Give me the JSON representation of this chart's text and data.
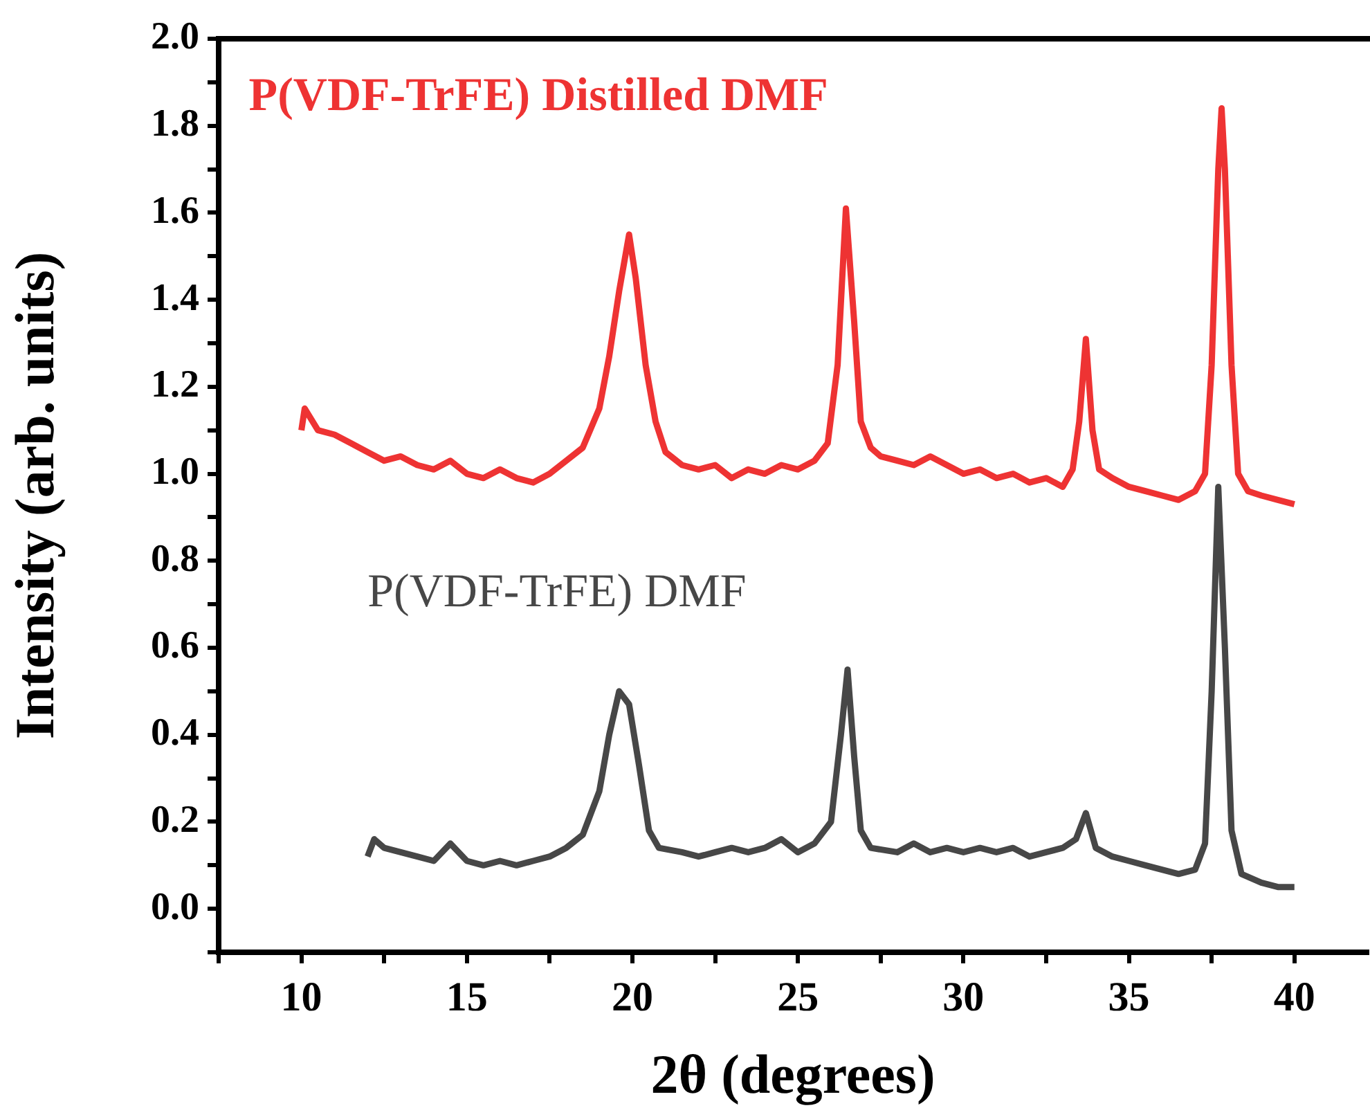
{
  "chart_data": {
    "type": "line",
    "xlabel": "2θ (degrees)",
    "ylabel": "Intensity (arb. units)",
    "xlim": [
      7.5,
      42.2
    ],
    "ylim": [
      -0.1,
      2.0
    ],
    "xticks": [
      {
        "value": 7.5,
        "label": null
      },
      10,
      {
        "value": 12.5,
        "label": null
      },
      15,
      {
        "value": 17.5,
        "label": null
      },
      20,
      {
        "value": 22.5,
        "label": null
      },
      25,
      {
        "value": 27.5,
        "label": null
      },
      30,
      {
        "value": 32.5,
        "label": null
      },
      35,
      {
        "value": 37.5,
        "label": null
      },
      40
    ],
    "yticks": [
      {
        "value": -0.1,
        "label": null
      },
      {
        "value": 0,
        "label": "0.0"
      },
      {
        "value": 0.1,
        "label": null
      },
      0.2,
      {
        "value": 0.3,
        "label": null
      },
      0.4,
      {
        "value": 0.5,
        "label": null
      },
      0.6,
      {
        "value": 0.7,
        "label": null
      },
      0.8,
      {
        "value": 0.9,
        "label": null
      },
      {
        "value": 1,
        "label": "1.0"
      },
      {
        "value": 1.1,
        "label": null
      },
      1.2,
      {
        "value": 1.3,
        "label": null
      },
      1.4,
      {
        "value": 1.5,
        "label": null
      },
      1.6,
      {
        "value": 1.7,
        "label": null
      },
      1.8,
      {
        "value": 1.9,
        "label": null
      },
      {
        "value": 2,
        "label": "2.0"
      }
    ],
    "grid": false,
    "marker": "none",
    "line_style": "solid",
    "series": [
      {
        "name": "P(VDF-TrFE) Distilled DMF",
        "color": "#ee3333",
        "x": [
          10,
          10.1,
          10.5,
          11,
          11.5,
          12,
          12.5,
          13,
          13.5,
          14,
          14.5,
          15,
          15.5,
          16,
          16.5,
          17,
          17.5,
          18,
          18.5,
          19,
          19.3,
          19.6,
          19.9,
          20.1,
          20.4,
          20.7,
          21,
          21.5,
          22,
          22.5,
          23,
          23.5,
          24,
          24.5,
          25,
          25.5,
          25.9,
          26.2,
          26.45,
          26.7,
          26.9,
          27.2,
          27.5,
          28,
          28.5,
          29,
          29.5,
          30,
          30.5,
          31,
          31.5,
          32,
          32.5,
          33,
          33.3,
          33.5,
          33.7,
          33.9,
          34.1,
          34.5,
          35,
          35.5,
          36,
          36.5,
          37,
          37.3,
          37.5,
          37.7,
          37.8,
          37.9,
          38.1,
          38.3,
          38.6,
          39,
          39.5,
          40
        ],
        "values": [
          1.1,
          1.15,
          1.1,
          1.09,
          1.07,
          1.05,
          1.03,
          1.04,
          1.02,
          1.01,
          1.03,
          1.0,
          0.99,
          1.01,
          0.99,
          0.98,
          1.0,
          1.03,
          1.06,
          1.15,
          1.27,
          1.42,
          1.55,
          1.45,
          1.25,
          1.12,
          1.05,
          1.02,
          1.01,
          1.02,
          0.99,
          1.01,
          1.0,
          1.02,
          1.01,
          1.03,
          1.07,
          1.25,
          1.61,
          1.35,
          1.12,
          1.06,
          1.04,
          1.03,
          1.02,
          1.04,
          1.02,
          1.0,
          1.01,
          0.99,
          1.0,
          0.98,
          0.99,
          0.97,
          1.01,
          1.12,
          1.31,
          1.1,
          1.01,
          0.99,
          0.97,
          0.96,
          0.95,
          0.94,
          0.96,
          1.0,
          1.25,
          1.7,
          1.84,
          1.7,
          1.25,
          1.0,
          0.96,
          0.95,
          0.94,
          0.93
        ]
      },
      {
        "name": "P(VDF-TrFE) DMF",
        "color": "#474747",
        "x": [
          12,
          12.2,
          12.5,
          13,
          13.5,
          14,
          14.5,
          15,
          15.5,
          16,
          16.5,
          17,
          17.5,
          18,
          18.5,
          19,
          19.3,
          19.6,
          19.9,
          20.2,
          20.5,
          20.8,
          21.5,
          22,
          22.5,
          23,
          23.5,
          24,
          24.5,
          25,
          25.5,
          26,
          26.3,
          26.5,
          26.7,
          26.9,
          27.2,
          28,
          28.5,
          29,
          29.5,
          30,
          30.5,
          31,
          31.5,
          32,
          32.5,
          33,
          33.4,
          33.7,
          34,
          34.5,
          35,
          35.5,
          36,
          36.5,
          37,
          37.3,
          37.5,
          37.7,
          37.9,
          38.1,
          38.4,
          39,
          39.5,
          40
        ],
        "values": [
          0.12,
          0.16,
          0.14,
          0.13,
          0.12,
          0.11,
          0.15,
          0.11,
          0.1,
          0.11,
          0.1,
          0.11,
          0.12,
          0.14,
          0.17,
          0.27,
          0.4,
          0.5,
          0.47,
          0.33,
          0.18,
          0.14,
          0.13,
          0.12,
          0.13,
          0.14,
          0.13,
          0.14,
          0.16,
          0.13,
          0.15,
          0.2,
          0.4,
          0.55,
          0.35,
          0.18,
          0.14,
          0.13,
          0.15,
          0.13,
          0.14,
          0.13,
          0.14,
          0.13,
          0.14,
          0.12,
          0.13,
          0.14,
          0.16,
          0.22,
          0.14,
          0.12,
          0.11,
          0.1,
          0.09,
          0.08,
          0.09,
          0.15,
          0.5,
          0.97,
          0.6,
          0.18,
          0.08,
          0.06,
          0.05,
          0.05
        ]
      }
    ]
  }
}
